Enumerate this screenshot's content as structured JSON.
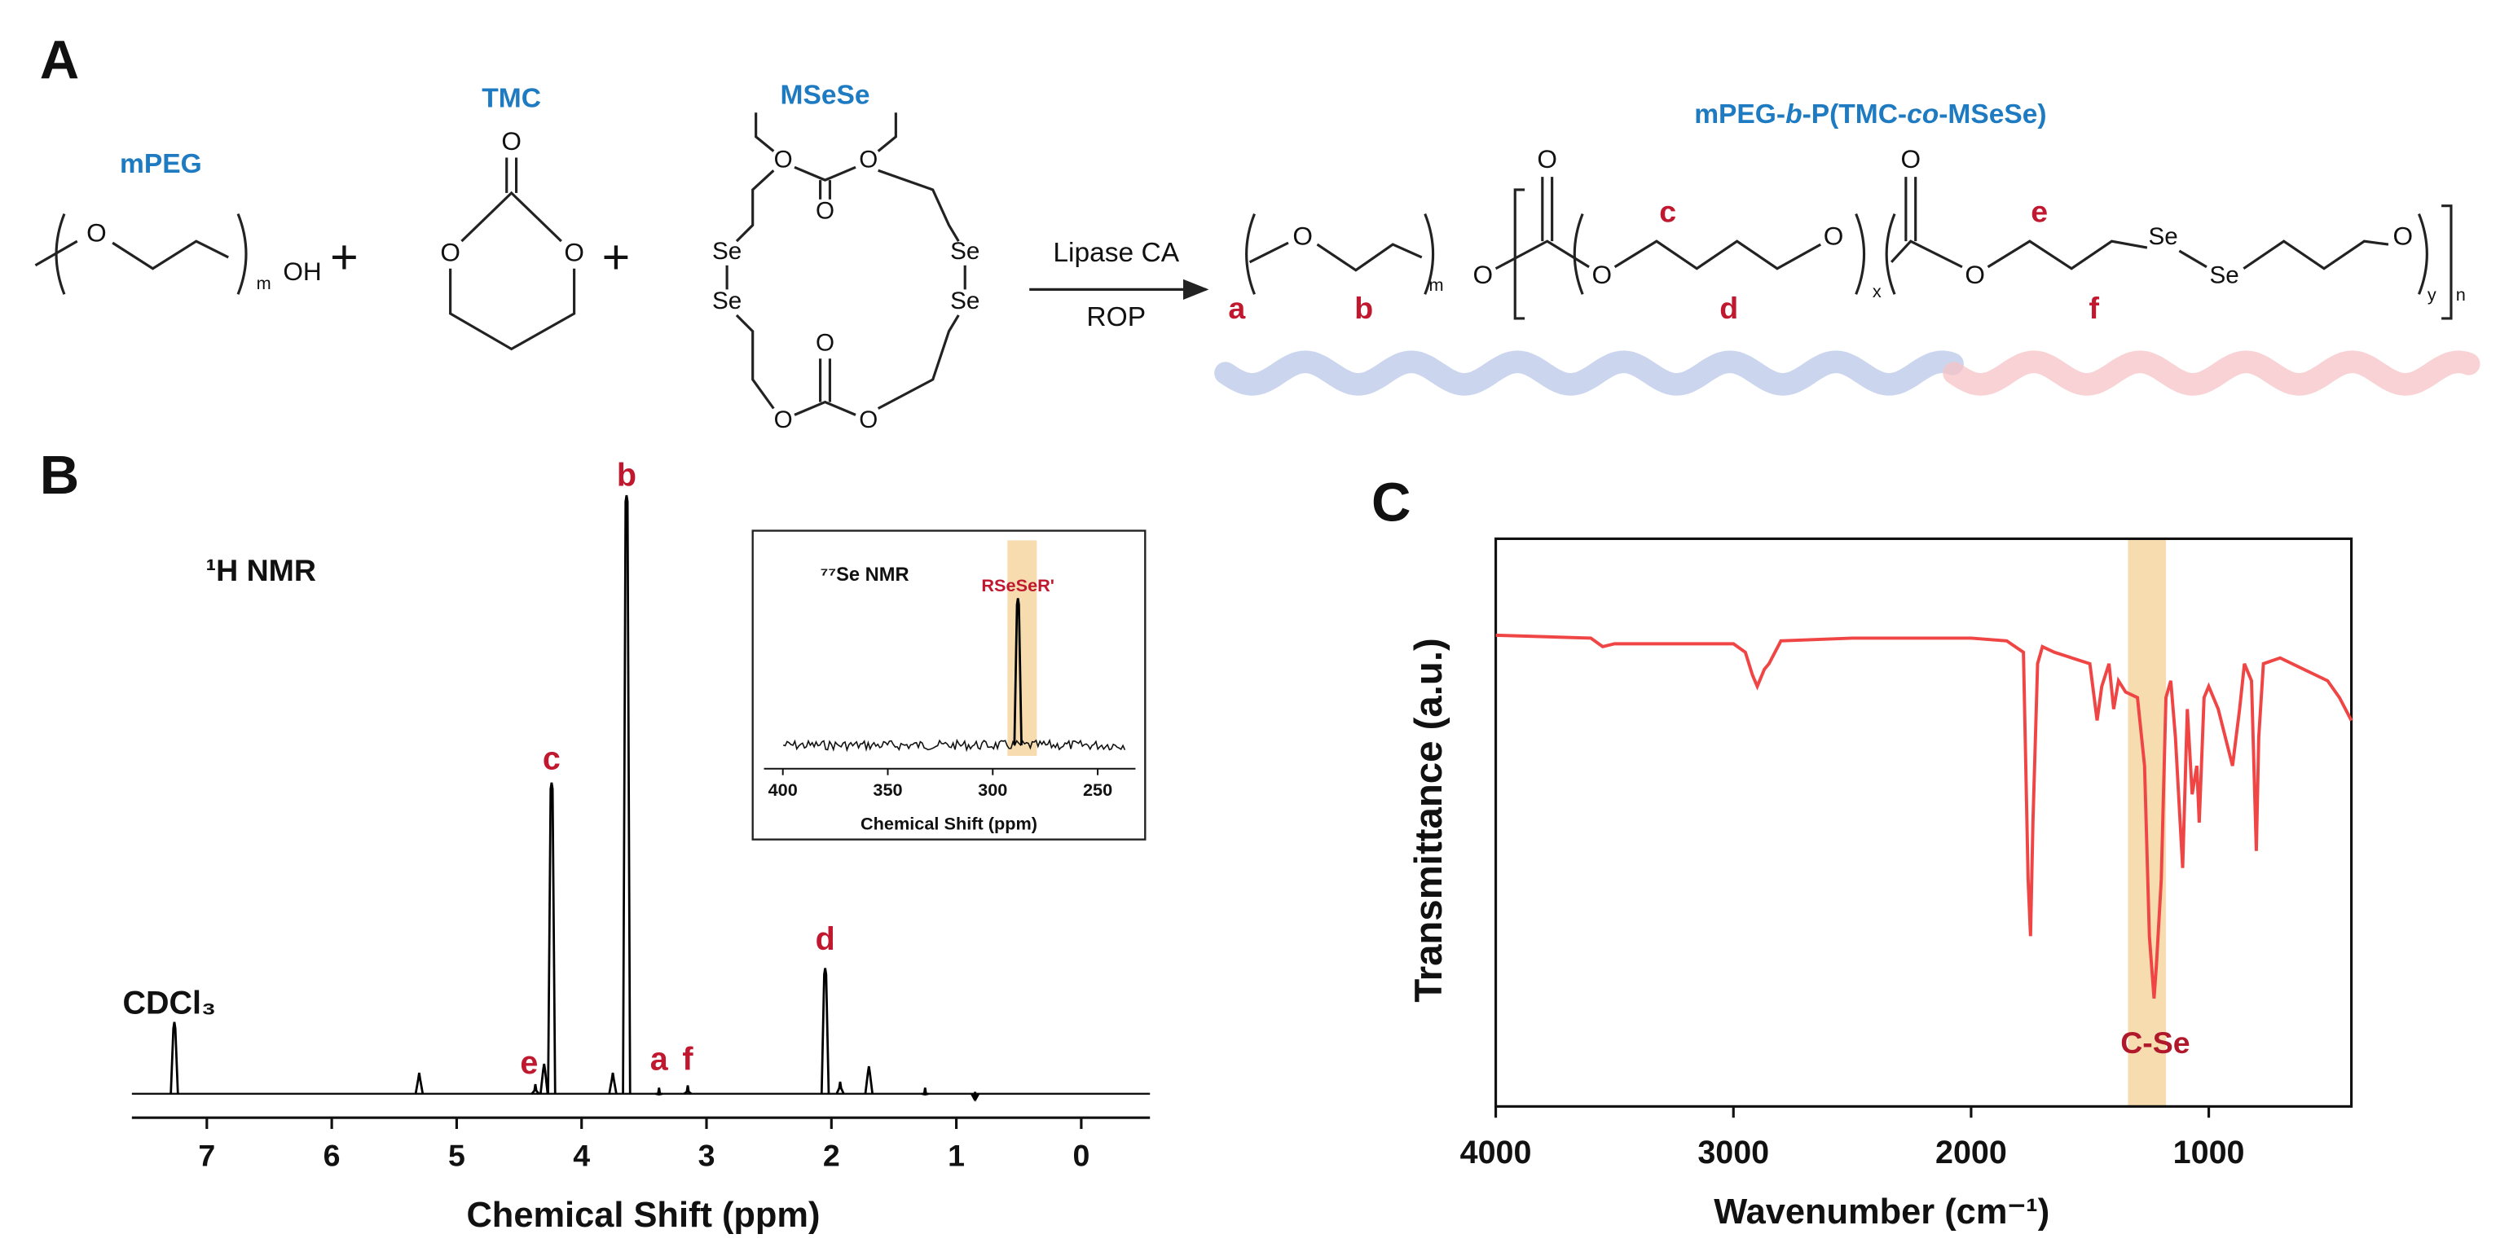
{
  "panels": {
    "a": "A",
    "b": "B",
    "c": "C"
  },
  "scheme": {
    "mpeg": {
      "name": "mPEG",
      "atoms": [
        "O",
        "OH",
        "m"
      ]
    },
    "plus": [
      "+",
      "+"
    ],
    "tmc": {
      "name": "TMC",
      "atoms": [
        "O",
        "O",
        "O"
      ]
    },
    "mseSe": {
      "name": "MSeSe",
      "atoms": [
        "O",
        "O",
        "O",
        "Se",
        "Se",
        "Se",
        "Se",
        "O",
        "O",
        "O"
      ]
    },
    "arrow": {
      "above": "Lipase CA",
      "below": "ROP"
    },
    "product": {
      "name_parts": [
        "mPEG-",
        "b",
        "-P(TMC-",
        "co",
        "-MSeSe)"
      ],
      "atoms": [
        "O",
        "m",
        "O",
        "O",
        "O",
        "O",
        "x",
        "O",
        "O",
        "Se",
        "Se",
        "O",
        "y",
        "n"
      ],
      "positions": [
        "a",
        "b",
        "c",
        "d",
        "e",
        "f"
      ]
    }
  },
  "chart_data": [
    {
      "type": "line",
      "style": "peaks",
      "title": "¹H NMR",
      "xlabel": "Chemical Shift (ppm)",
      "xlim": [
        7.6,
        -0.55
      ],
      "xticks": [
        7,
        6,
        5,
        4,
        3,
        2,
        1,
        0
      ],
      "ylim": [
        -4,
        100
      ],
      "axes": "bottom",
      "x": [
        7.26,
        5.3,
        4.37,
        4.3,
        4.24,
        3.75,
        3.64,
        3.38,
        3.15,
        2.05,
        1.93,
        1.7,
        1.25,
        0.85
      ],
      "series": [
        {
          "color": "#000000",
          "values": [
            12,
            3.5,
            1.6,
            5,
            52,
            3.5,
            100,
            1,
            1.4,
            21,
            2,
            4.6,
            1,
            0.3
          ]
        }
      ],
      "annotations": [
        {
          "text": "CDCl₃",
          "x": 7.3,
          "y": 14.8,
          "color": "#111111"
        },
        {
          "text": "b",
          "x": 3.64,
          "y": 103,
          "color": "#c0182f"
        },
        {
          "text": "c",
          "x": 4.24,
          "y": 55.6,
          "color": "#c0182f"
        },
        {
          "text": "d",
          "x": 2.05,
          "y": 25.5,
          "color": "#c0182f"
        },
        {
          "text": "e",
          "x": 4.42,
          "y": 4.8,
          "color": "#c0182f"
        },
        {
          "text": "a",
          "x": 3.38,
          "y": 5.4,
          "color": "#c0182f"
        },
        {
          "text": "f",
          "x": 3.15,
          "y": 5.4,
          "color": "#c0182f"
        }
      ]
    },
    {
      "type": "line",
      "style": "peaks",
      "title": "⁷⁷Se NMR",
      "xlabel": "Chemical Shift (ppm)",
      "xlim": [
        409,
        232
      ],
      "xticks": [
        400,
        350,
        300,
        250
      ],
      "ylim": [
        -16,
        100
      ],
      "axes": "bottom",
      "band": [
        293,
        279
      ],
      "band_color": "#f7dcb0",
      "x": [
        288
      ],
      "series": [
        {
          "color": "#000000",
          "values": [
            100
          ]
        }
      ],
      "annotations": [
        {
          "text": "RSeSeR'",
          "x": 288,
          "y": 108,
          "color": "#c0182f"
        }
      ]
    },
    {
      "type": "line",
      "style": "curve",
      "xlabel": "Wavenumber (cm⁻¹)",
      "ylabel": "Transmittance (a.u.)",
      "xlim": [
        4000,
        400
      ],
      "xticks": [
        4000,
        3000,
        2000,
        1000
      ],
      "ylim": [
        0,
        100
      ],
      "axes": "box",
      "band": [
        1340,
        1180
      ],
      "band_color": "#f7dcb0",
      "x": [
        4000,
        3600,
        3550,
        3500,
        3000,
        2950,
        2920,
        2900,
        2870,
        2850,
        2800,
        2500,
        2000,
        1850,
        1780,
        1760,
        1750,
        1740,
        1720,
        1700,
        1650,
        1500,
        1470,
        1450,
        1420,
        1400,
        1380,
        1350,
        1300,
        1270,
        1250,
        1230,
        1220,
        1200,
        1180,
        1160,
        1140,
        1110,
        1090,
        1070,
        1050,
        1040,
        1020,
        1000,
        960,
        900,
        870,
        850,
        820,
        800,
        790,
        770,
        700,
        600,
        500,
        450,
        400
      ],
      "series": [
        {
          "color": "#f04545",
          "values": [
            83,
            82.5,
            81,
            81.5,
            81.5,
            80,
            76,
            74,
            77,
            78,
            82,
            82.5,
            82.5,
            82,
            80,
            40,
            30,
            50,
            78,
            81,
            80,
            78,
            68,
            74,
            78,
            70,
            75,
            73,
            72,
            60,
            30,
            19,
            25,
            40,
            72,
            75,
            65,
            42,
            70,
            55,
            60,
            50,
            72,
            74,
            70,
            60,
            70,
            78,
            75,
            45,
            65,
            78,
            79,
            77,
            75,
            72,
            68
          ]
        }
      ],
      "annotations": [
        {
          "text": "C-Se",
          "x": 1225,
          "y": 10.8,
          "color": "#b0182c"
        }
      ]
    }
  ]
}
